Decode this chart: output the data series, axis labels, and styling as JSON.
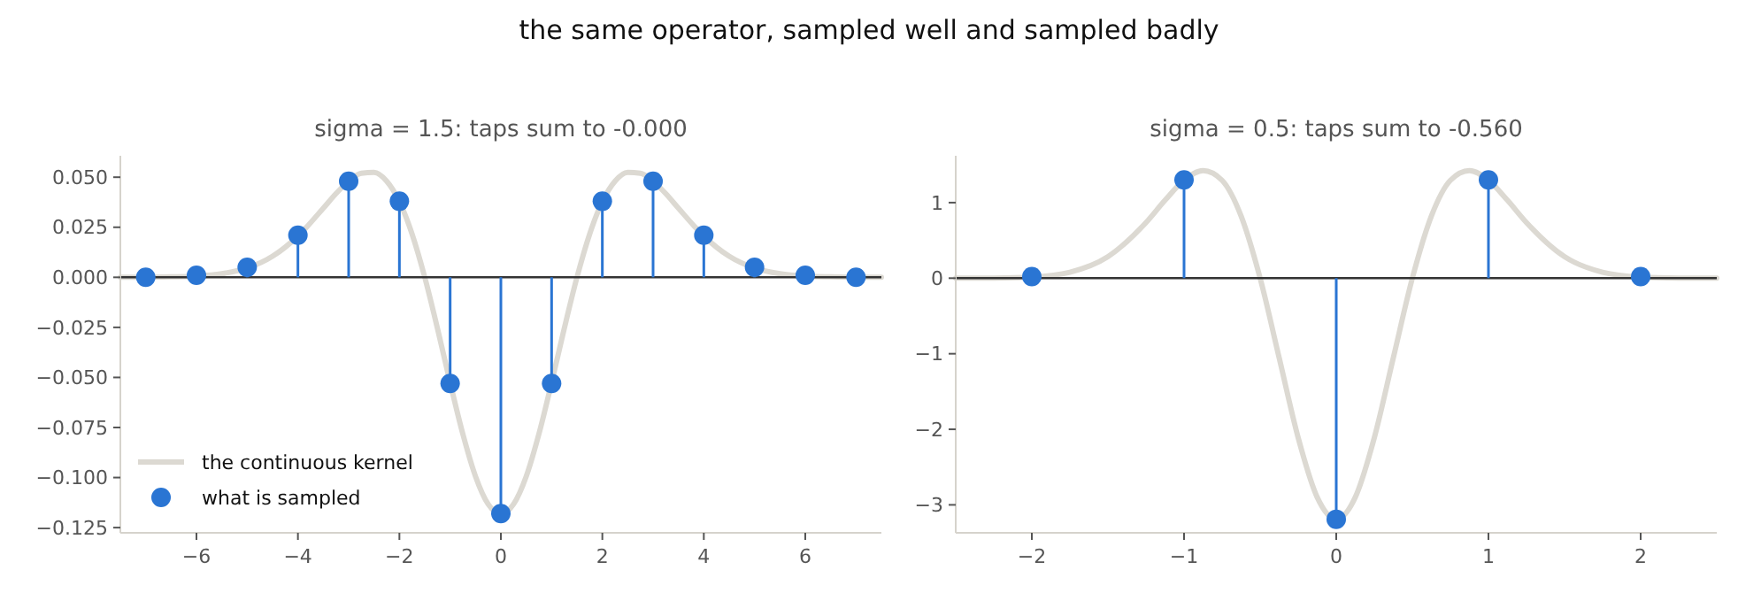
{
  "chart_data": [
    {
      "type": "lollipop",
      "title": "sigma = 1.5: taps sum to -0.000",
      "annotations": [
        "the same operator, sampled well and sampled badly"
      ],
      "legend": "bottom left",
      "xlim": [
        -7.5,
        7.5
      ],
      "ylim": [
        -0.1276,
        0.0607
      ],
      "xticks": [
        {
          "value": -6,
          "label": "−6"
        },
        {
          "value": -4,
          "label": "−4"
        },
        {
          "value": -2,
          "label": "−2"
        },
        0,
        2,
        4,
        6
      ],
      "yticks": [
        {
          "value": 0.05,
          "label": "0.050"
        },
        {
          "value": 0.025,
          "label": "0.025"
        },
        {
          "value": 0,
          "label": "0.000"
        },
        {
          "value": -0.025,
          "label": "−0.025"
        },
        {
          "value": -0.05,
          "label": "−0.050"
        },
        {
          "value": -0.075,
          "label": "−0.075"
        },
        {
          "value": -0.1,
          "label": "−0.100"
        },
        {
          "value": -0.125,
          "label": "−0.125"
        }
      ],
      "ref_lines": [
        {
          "axis": "y",
          "value": 0,
          "color": "#333333"
        }
      ],
      "series": [
        {
          "type": "line",
          "name": "the continuous kernel",
          "color": "#dcd9d2",
          "x": [
            -7.5,
            -7,
            -6.5,
            -6,
            -5.5,
            -5,
            -4.5,
            -4,
            -3.5,
            -3.25,
            -3,
            -2.75,
            -2.5,
            -2.25,
            -2,
            -1.75,
            -1.5,
            -1.25,
            -1,
            -0.75,
            -0.5,
            -0.25,
            0,
            0.25,
            0.5,
            0.75,
            1,
            1.25,
            1.5,
            1.75,
            2,
            2.25,
            2.5,
            2.75,
            3,
            3.25,
            3.5,
            4,
            4.5,
            5,
            5.5,
            6,
            6.5,
            7,
            7.5
          ],
          "values": [
            0,
            0,
            0.0002,
            0.0006,
            0.0018,
            0.0046,
            0.0105,
            0.0206,
            0.0345,
            0.0418,
            0.048,
            0.052,
            0.0524,
            0.048,
            0.0378,
            0.0216,
            0,
            -0.0255,
            -0.0526,
            -0.0782,
            -0.0994,
            -0.1133,
            -0.1182,
            -0.1133,
            -0.0994,
            -0.0782,
            -0.0526,
            -0.0255,
            0,
            0.0216,
            0.0378,
            0.048,
            0.0524,
            0.052,
            0.048,
            0.0418,
            0.0345,
            0.0206,
            0.0105,
            0.0046,
            0.0018,
            0.0006,
            0.0002,
            0,
            0
          ]
        },
        {
          "name": "what is sampled",
          "color": "#2a75d3",
          "marker": "circle",
          "x": [
            -7,
            -6,
            -5,
            -4,
            -3,
            -2,
            -1,
            0,
            1,
            2,
            3,
            4,
            5,
            6,
            7
          ],
          "values": [
            0,
            0.001,
            0.005,
            0.021,
            0.048,
            0.038,
            -0.053,
            -0.118,
            -0.053,
            0.038,
            0.048,
            0.021,
            0.005,
            0.001,
            0
          ]
        }
      ]
    },
    {
      "type": "lollipop",
      "title": "sigma = 0.5: taps sum to -0.560",
      "xlim": [
        -2.5,
        2.5
      ],
      "ylim": [
        -3.37,
        1.62
      ],
      "xticks": [
        {
          "value": -2,
          "label": "−2"
        },
        {
          "value": -1,
          "label": "−1"
        },
        0,
        1,
        2
      ],
      "yticks": [
        1,
        0,
        {
          "value": -1,
          "label": "−1"
        },
        {
          "value": -2,
          "label": "−2"
        },
        {
          "value": -3,
          "label": "−3"
        }
      ],
      "ref_lines": [
        {
          "axis": "y",
          "value": 0,
          "color": "#333333"
        }
      ],
      "series": [
        {
          "type": "line",
          "color": "#dcd9d2",
          "x": [
            -2.5,
            -2.25,
            -2,
            -1.75,
            -1.5,
            -1.25,
            -1.125,
            -1,
            -0.875,
            -0.75,
            -0.625,
            -0.5,
            -0.375,
            -0.25,
            -0.125,
            0,
            0.125,
            0.25,
            0.375,
            0.5,
            0.625,
            0.75,
            0.875,
            1,
            1.125,
            1.25,
            1.5,
            1.75,
            2,
            2.25,
            2.5
          ],
          "values": [
            0,
            0.002,
            0.016,
            0.079,
            0.284,
            0.736,
            1.031,
            1.296,
            1.424,
            1.295,
            0.822,
            0,
            -1.054,
            -2.112,
            -2.9,
            -3.19,
            -2.9,
            -2.112,
            -1.054,
            0,
            0.822,
            1.295,
            1.424,
            1.296,
            1.031,
            0.736,
            0.284,
            0.079,
            0.016,
            0.002,
            0
          ]
        },
        {
          "color": "#2a75d3",
          "marker": "circle",
          "x": [
            -2,
            -1,
            0,
            1,
            2
          ],
          "values": [
            0.02,
            1.3,
            -3.19,
            1.3,
            0.02
          ]
        }
      ]
    }
  ]
}
